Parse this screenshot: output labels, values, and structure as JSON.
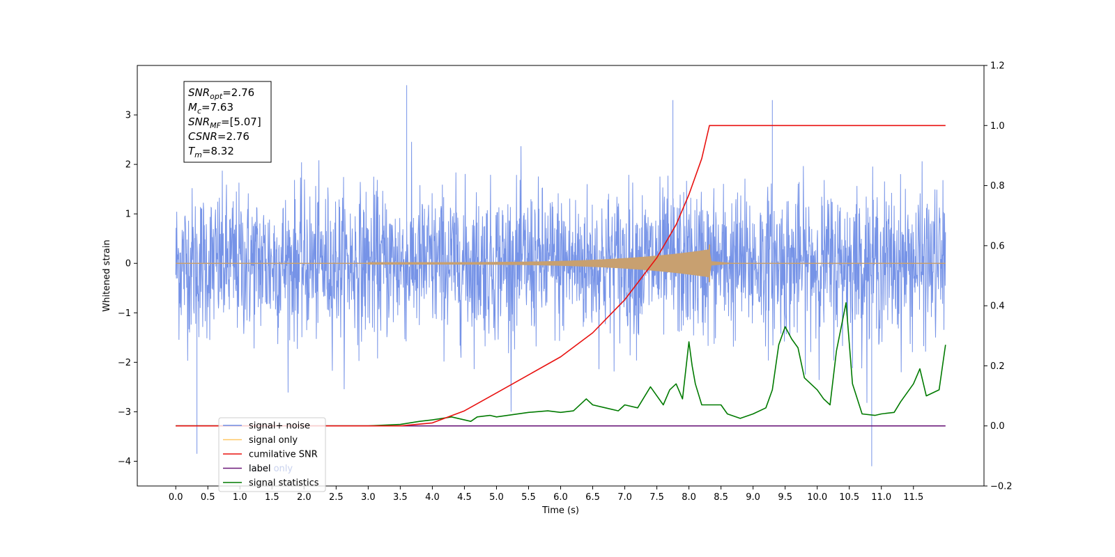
{
  "chart_data": {
    "type": "line",
    "xlabel": "Time (s)",
    "ylabel": "Whitened strain",
    "xlim": [
      -0.6,
      12.6
    ],
    "ylim": [
      -4.5,
      4.0
    ],
    "y2lim": [
      -0.2,
      1.2
    ],
    "x_ticks": [
      "0.0",
      "0.5",
      "1.0",
      "1.5",
      "2.0",
      "2.5",
      "3.0",
      "3.5",
      "4.0",
      "4.5",
      "5.0",
      "5.5",
      "6.0",
      "6.5",
      "7.0",
      "7.5",
      "8.0",
      "8.5",
      "9.0",
      "9.5",
      "10.0",
      "10.5",
      "11.0",
      "11.5"
    ],
    "y_ticks": [
      "3",
      "2",
      "1",
      "0",
      "−1",
      "−2",
      "−3",
      "−4"
    ],
    "y2_ticks": [
      "1.2",
      "1.0",
      "0.8",
      "0.6",
      "0.4",
      "0.2",
      "0.0",
      "−0.2"
    ],
    "annotation": {
      "lines": [
        {
          "name": "SNR",
          "sub": "opt",
          "value": "=2.76"
        },
        {
          "name": "M",
          "sub": "c",
          "value": "=7.63"
        },
        {
          "name": "SNR",
          "sub": "MF",
          "value": "=[5.07]"
        },
        {
          "name": "CSNR",
          "sub": "",
          "value": "=2.76"
        },
        {
          "name": "T",
          "sub": "m",
          "value": "=8.32"
        }
      ]
    },
    "legend": {
      "placement": "lower-left",
      "entries": [
        {
          "label": "signal+ noise",
          "color": "#6f8de6"
        },
        {
          "label": "signal only",
          "color": "#ffc864"
        },
        {
          "label": "cumilative SNR",
          "color": "#e8110f"
        },
        {
          "label": "label",
          "color": "#6a1778"
        },
        {
          "label": "signal statistics",
          "color": "#007a00"
        }
      ],
      "hidden_text": "label only"
    },
    "series": [
      {
        "name": "signal+ noise",
        "axis": "left",
        "color": "#6f8de6",
        "x_range": [
          0.0,
          12.0
        ],
        "description_values": {
          "typical_band": [
            -2.0,
            2.0
          ],
          "peaks": [
            [
              3.6,
              3.6
            ],
            [
              7.75,
              3.3
            ],
            [
              9.3,
              3.3
            ],
            [
              0.33,
              -3.85
            ],
            [
              10.85,
              -4.1
            ]
          ]
        }
      },
      {
        "name": "signal only",
        "axis": "left",
        "color": "#c8a070",
        "x_range": [
          0.0,
          12.0
        ],
        "merger_time": 8.32,
        "peak_amplitude": 0.28
      },
      {
        "name": "cumilative SNR",
        "axis": "right",
        "color": "#e8110f",
        "x": [
          0.0,
          3.5,
          4.0,
          4.5,
          5.0,
          5.5,
          6.0,
          6.5,
          7.0,
          7.5,
          7.8,
          8.0,
          8.2,
          8.32,
          12.0
        ],
        "values": [
          0.0,
          0.0,
          0.01,
          0.05,
          0.11,
          0.17,
          0.23,
          0.31,
          0.42,
          0.56,
          0.67,
          0.77,
          0.89,
          1.0,
          1.0
        ]
      },
      {
        "name": "label",
        "axis": "right",
        "color": "#6a1778",
        "x": [
          0.0,
          12.0
        ],
        "values": [
          0.0,
          0.0
        ]
      },
      {
        "name": "signal statistics",
        "axis": "right",
        "color": "#007a00",
        "x": [
          0.0,
          2.0,
          3.0,
          3.5,
          3.8,
          4.0,
          4.3,
          4.6,
          4.7,
          4.9,
          5.0,
          5.5,
          5.8,
          6.0,
          6.2,
          6.4,
          6.5,
          6.7,
          6.9,
          7.0,
          7.2,
          7.4,
          7.5,
          7.6,
          7.7,
          7.8,
          7.9,
          8.0,
          8.05,
          8.1,
          8.2,
          8.3,
          8.5,
          8.6,
          8.8,
          9.0,
          9.2,
          9.3,
          9.4,
          9.5,
          9.6,
          9.7,
          9.8,
          9.9,
          10.0,
          10.1,
          10.2,
          10.3,
          10.45,
          10.55,
          10.7,
          10.9,
          11.0,
          11.2,
          11.3,
          11.4,
          11.5,
          11.6,
          11.7,
          11.9,
          12.0
        ],
        "values": [
          0.0,
          0.0,
          0.0,
          0.005,
          0.015,
          0.02,
          0.03,
          0.015,
          0.03,
          0.035,
          0.03,
          0.045,
          0.05,
          0.045,
          0.05,
          0.09,
          0.07,
          0.06,
          0.05,
          0.07,
          0.06,
          0.13,
          0.1,
          0.07,
          0.12,
          0.14,
          0.09,
          0.28,
          0.2,
          0.14,
          0.07,
          0.07,
          0.07,
          0.04,
          0.025,
          0.04,
          0.06,
          0.12,
          0.27,
          0.33,
          0.29,
          0.26,
          0.16,
          0.14,
          0.12,
          0.09,
          0.07,
          0.25,
          0.41,
          0.14,
          0.04,
          0.035,
          0.04,
          0.045,
          0.08,
          0.11,
          0.14,
          0.19,
          0.1,
          0.12,
          0.27
        ]
      }
    ]
  }
}
